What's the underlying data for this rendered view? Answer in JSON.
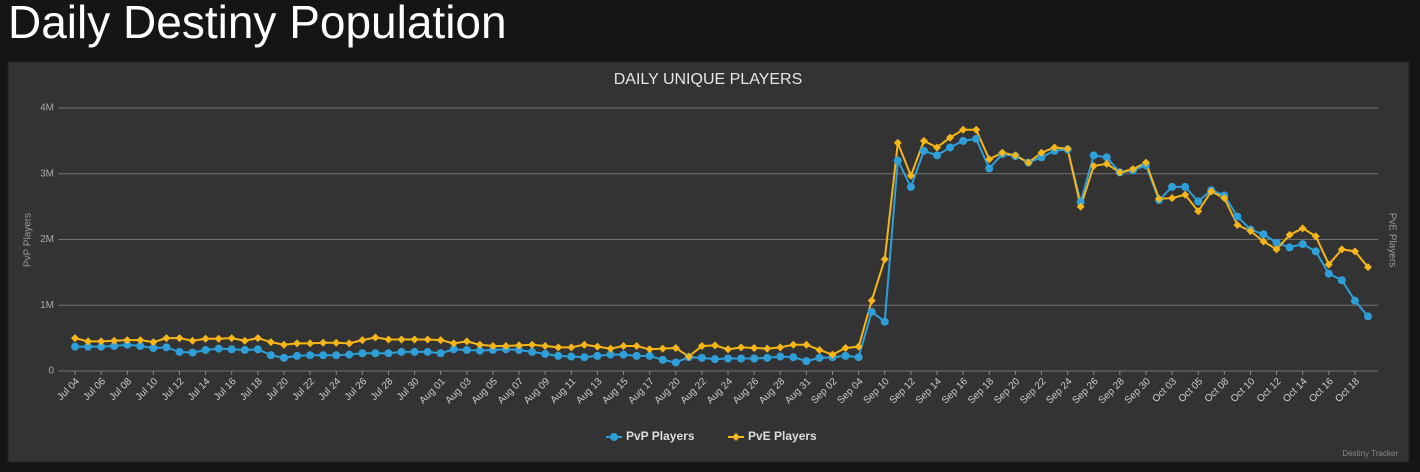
{
  "header": {
    "title": "Daily Destiny Population"
  },
  "chart_data": {
    "type": "line",
    "title": "DAILY UNIQUE PLAYERS",
    "y_label": "PvP Players",
    "y2_label": "PvE Players",
    "credit": "Destiny Tracker",
    "categories": [
      "Jul 04",
      null,
      "Jul 06",
      null,
      "Jul 08",
      null,
      "Jul 10",
      null,
      "Jul 12",
      null,
      "Jul 14",
      null,
      "Jul 16",
      null,
      "Jul 18",
      null,
      "Jul 20",
      null,
      "Jul 22",
      null,
      "Jul 24",
      null,
      "Jul 26",
      null,
      "Jul 28",
      null,
      "Jul 30",
      null,
      "Aug 01",
      null,
      "Aug 03",
      null,
      "Aug 05",
      null,
      "Aug 07",
      null,
      "Aug 09",
      null,
      "Aug 11",
      null,
      "Aug 13",
      null,
      "Aug 15",
      null,
      "Aug 17",
      null,
      "Aug 20",
      null,
      "Aug 22",
      null,
      "Aug 24",
      null,
      "Aug 26",
      null,
      "Aug 28",
      null,
      "Aug 31",
      null,
      "Sep 02",
      null,
      "Sep 04",
      null,
      "Sep 10",
      null,
      "Sep 12",
      null,
      "Sep 14",
      null,
      "Sep 16",
      null,
      "Sep 18",
      null,
      "Sep 20",
      null,
      "Sep 22",
      null,
      "Sep 24",
      null,
      "Sep 26",
      null,
      "Sep 28",
      null,
      "Sep 30",
      null,
      "Oct 03",
      null,
      "Oct 05",
      null,
      "Oct 08",
      null,
      "Oct 10",
      null,
      "Oct 12",
      null,
      "Oct 14",
      null,
      "Oct 16",
      null,
      "Oct 18",
      null
    ],
    "series": [
      {
        "name": "PvP Players",
        "color": "#2e9fd8",
        "marker": "circle",
        "values": [
          370000,
          370000,
          370000,
          380000,
          400000,
          380000,
          350000,
          360000,
          290000,
          280000,
          320000,
          340000,
          330000,
          320000,
          330000,
          240000,
          200000,
          230000,
          240000,
          240000,
          240000,
          250000,
          270000,
          270000,
          270000,
          290000,
          290000,
          290000,
          270000,
          330000,
          320000,
          310000,
          320000,
          330000,
          320000,
          290000,
          260000,
          230000,
          220000,
          210000,
          230000,
          250000,
          250000,
          230000,
          230000,
          170000,
          130000,
          210000,
          200000,
          180000,
          190000,
          190000,
          190000,
          200000,
          220000,
          210000,
          150000,
          200000,
          210000,
          230000,
          210000,
          900000,
          750000,
          3200000,
          2800000,
          3350000,
          3280000,
          3400000,
          3500000,
          3530000,
          3080000,
          3300000,
          3270000,
          3170000,
          3250000,
          3350000,
          3370000,
          2570000,
          3280000,
          3250000,
          3020000,
          3050000,
          3130000,
          2600000,
          2800000,
          2800000,
          2580000,
          2750000,
          2670000,
          2350000,
          2150000,
          2080000,
          1950000,
          1880000,
          1930000,
          1820000,
          1480000,
          1380000,
          1070000,
          830000
        ]
      },
      {
        "name": "PvE Players",
        "color": "#f6b619",
        "marker": "diamond",
        "values": [
          500000,
          450000,
          450000,
          460000,
          470000,
          470000,
          440000,
          500000,
          500000,
          460000,
          490000,
          490000,
          500000,
          460000,
          500000,
          440000,
          400000,
          420000,
          420000,
          430000,
          430000,
          420000,
          470000,
          510000,
          480000,
          480000,
          480000,
          480000,
          470000,
          420000,
          450000,
          400000,
          380000,
          380000,
          390000,
          400000,
          380000,
          360000,
          360000,
          400000,
          370000,
          340000,
          380000,
          380000,
          330000,
          340000,
          350000,
          220000,
          380000,
          390000,
          330000,
          360000,
          350000,
          340000,
          360000,
          400000,
          400000,
          320000,
          250000,
          350000,
          370000,
          1070000,
          1700000,
          3470000,
          2970000,
          3500000,
          3400000,
          3550000,
          3670000,
          3670000,
          3220000,
          3320000,
          3280000,
          3170000,
          3320000,
          3400000,
          3380000,
          2500000,
          3120000,
          3150000,
          3020000,
          3070000,
          3170000,
          2620000,
          2630000,
          2680000,
          2430000,
          2730000,
          2630000,
          2220000,
          2130000,
          1970000,
          1850000,
          2070000,
          2170000,
          2050000,
          1620000,
          1850000,
          1820000,
          1580000
        ]
      }
    ],
    "ylim": [
      0,
      4000000
    ],
    "yticks": [
      0,
      {
        "value": 1000000,
        "label": "1M"
      },
      {
        "value": 2000000,
        "label": "2M"
      },
      {
        "value": 3000000,
        "label": "3M"
      },
      {
        "value": 4000000,
        "label": "4M"
      }
    ],
    "grid": true,
    "legend": "bottom"
  }
}
